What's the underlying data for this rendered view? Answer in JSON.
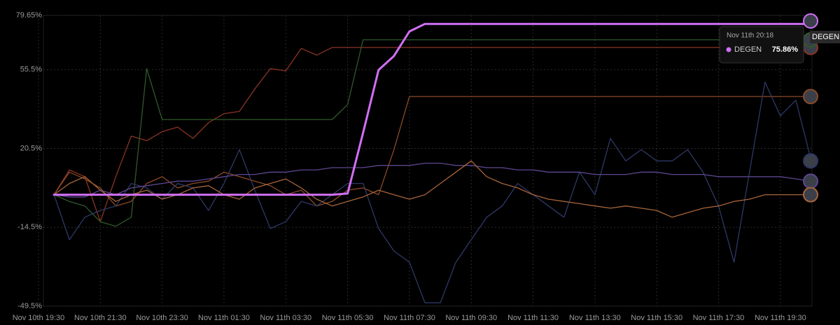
{
  "chart_data": {
    "type": "line",
    "x": [
      "Nov 10th 19:30",
      null,
      null,
      null,
      "Nov 10th 21:30",
      null,
      null,
      null,
      "Nov 10th 23:30",
      null,
      null,
      null,
      "Nov 11th 01:30",
      null,
      null,
      null,
      "Nov 11th 03:30",
      null,
      null,
      null,
      "Nov 11th 05:30",
      null,
      null,
      null,
      "Nov 11th 07:30",
      null,
      null,
      null,
      "Nov 11th 09:30",
      null,
      null,
      null,
      "Nov 11th 11:30",
      null,
      null,
      null,
      "Nov 11th 13:30",
      null,
      null,
      null,
      "Nov 11th 15:30",
      null,
      null,
      null,
      "Nov 11th 17:30",
      null,
      null,
      null,
      "Nov 11th 19:30",
      null,
      null
    ],
    "ylim": [
      -49.5,
      79.65
    ],
    "yticks": [
      {
        "value": -49.5,
        "label": "-49.5%"
      },
      {
        "value": -14.5,
        "label": "-14.5%"
      },
      {
        "value": 20.5,
        "label": "20.5%"
      },
      {
        "value": 55.5,
        "label": "55.5%"
      },
      {
        "value": 79.65,
        "label": "79.65%"
      }
    ],
    "grid": true,
    "series": [
      {
        "color": "#8a3424",
        "values": [
          null,
          0,
          11,
          8,
          -12,
          8,
          26,
          24,
          28,
          30,
          25,
          32,
          36,
          37,
          47,
          56,
          55,
          65,
          62,
          65.4,
          65.4,
          65.4,
          65.4,
          65.4,
          65.4,
          65.4,
          65.4,
          65.4,
          65.4,
          65.4,
          65.4,
          65.4,
          65.4,
          65.4,
          65.4,
          65.4,
          65.4,
          65.4,
          65.4,
          65.4,
          65.4,
          65.4,
          65.4,
          65.4,
          65.4,
          65.4,
          65.4,
          65.4,
          65.4,
          65.4,
          65.4
        ]
      },
      {
        "color": "#2f5a2a",
        "values": [
          null,
          0,
          -3,
          -5,
          -12,
          -14,
          -10,
          56,
          33.4,
          33.4,
          33.4,
          33.4,
          33.4,
          33.4,
          33.4,
          33.4,
          33.4,
          33.4,
          33.4,
          33.4,
          40,
          68.8,
          68.8,
          68.8,
          68.8,
          68.8,
          68.8,
          68.8,
          68.8,
          68.8,
          68.8,
          68.8,
          68.8,
          68.8,
          68.8,
          68.8,
          68.8,
          68.8,
          68.8,
          68.8,
          68.8,
          68.8,
          68.8,
          68.8,
          68.8,
          68.8,
          68.8,
          68.8,
          68.8,
          68.8,
          68.8
        ]
      },
      {
        "color": "#8c4a26",
        "values": [
          null,
          0,
          10,
          7,
          3,
          -5,
          -3,
          5,
          8,
          3,
          5,
          6,
          10,
          8,
          6,
          4,
          0,
          2,
          -5,
          -3,
          2,
          3,
          0,
          20,
          43.6,
          43.6,
          43.6,
          43.6,
          43.6,
          43.6,
          43.6,
          43.6,
          43.6,
          43.6,
          43.6,
          43.6,
          43.6,
          43.6,
          43.6,
          43.6,
          43.6,
          43.6,
          43.6,
          43.6,
          43.6,
          43.6,
          43.6,
          43.6,
          43.6,
          43.6,
          43.6
        ]
      },
      {
        "color": "#2e3866",
        "values": [
          null,
          0,
          -20,
          -10,
          -7,
          -5,
          5,
          3,
          -2,
          5,
          3,
          -7,
          5,
          20,
          2,
          -15,
          -12,
          -3,
          -5,
          0,
          5,
          5,
          -15,
          -25,
          -30,
          -48,
          -48,
          -30,
          -20,
          -10,
          -5,
          5,
          0,
          -5,
          -10,
          10,
          0,
          25,
          15,
          20,
          15,
          15,
          20,
          10,
          -5,
          -30,
          10,
          50,
          35,
          42,
          15
        ]
      },
      {
        "color": "#5e4690",
        "values": [
          null,
          0,
          -1,
          -1,
          2,
          0,
          3,
          4,
          5,
          6,
          6,
          7,
          8,
          9,
          9,
          10,
          10,
          11,
          11,
          12,
          12,
          12,
          13,
          13,
          13,
          14,
          14,
          13,
          13,
          12,
          12,
          11,
          11,
          10,
          10,
          10,
          9,
          9,
          9,
          10,
          10,
          9,
          9,
          9,
          8,
          8,
          8,
          8,
          8,
          7,
          6
        ]
      },
      {
        "color": "#a8643a",
        "values": [
          null,
          0,
          5,
          8,
          2,
          -3,
          0,
          2,
          -2,
          0,
          3,
          4,
          0,
          -2,
          3,
          5,
          7,
          3,
          -2,
          -5,
          -3,
          -1,
          2,
          0,
          -2,
          0,
          5,
          10,
          15,
          8,
          5,
          3,
          0,
          -2,
          -3,
          -4,
          -5,
          -6,
          -5,
          -6,
          -7,
          -10,
          -8,
          -6,
          -5,
          -3,
          -2,
          0,
          0,
          0,
          0
        ]
      },
      {
        "name": "DEGEN",
        "color": "#d070f5",
        "values": [
          null,
          0,
          0,
          0,
          0,
          0,
          0,
          0,
          0,
          0,
          0,
          0,
          0,
          0,
          0,
          0,
          0,
          0,
          0,
          0,
          0.5,
          27.5,
          55.4,
          61.6,
          72.5,
          75.86,
          75.86,
          75.86,
          75.86,
          75.86,
          75.86,
          75.86,
          75.86,
          75.86,
          75.86,
          75.86,
          75.86,
          75.86,
          75.86,
          75.86,
          75.86,
          75.86,
          75.86,
          75.86,
          75.86,
          75.86,
          75.86,
          75.86,
          75.86,
          75.86,
          75.86
        ]
      }
    ],
    "tooltip": {
      "title": "Nov 11th 20:18",
      "value": 75.86,
      "value_label": "75.86%"
    }
  }
}
